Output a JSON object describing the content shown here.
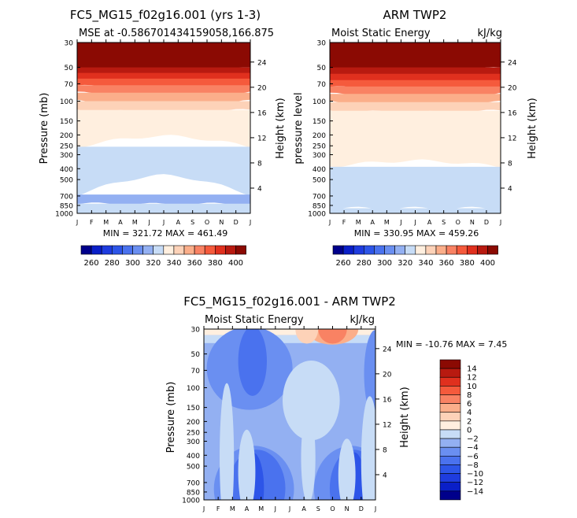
{
  "chart_data": [
    {
      "type": "contour",
      "id": "p1",
      "title": "FC5_MG15_f02g16.001 (yrs 1-3)",
      "subtitle_left": "MSE at -0.586701434159058,166.875",
      "subtitle_right": "",
      "ylabel_left": "Pressure (mb)",
      "ylabel_right": "Height (km)",
      "x_ticks": [
        "J",
        "F",
        "M",
        "A",
        "M",
        "J",
        "J",
        "A",
        "S",
        "O",
        "N",
        "D",
        "J"
      ],
      "pressure_ticks": [
        30,
        50,
        70,
        100,
        150,
        200,
        250,
        300,
        400,
        500,
        700,
        850,
        1000
      ],
      "height_ticks": [
        24,
        20,
        16,
        12,
        8,
        4
      ],
      "stats": "MIN = 321.72  MAX = 461.49",
      "bands": [
        {
          "p_top": 30,
          "p_bot_ends": 50,
          "p_bot_mid": 58,
          "value": 410
        },
        {
          "p_top": 50,
          "p_bot_ends": 56,
          "p_bot_mid": 64,
          "value": 400
        },
        {
          "p_top": 56,
          "p_bot_ends": 63,
          "p_bot_mid": 71,
          "value": 390
        },
        {
          "p_top": 63,
          "p_bot_ends": 72,
          "p_bot_mid": 80,
          "value": 380
        },
        {
          "p_top": 72,
          "p_bot_ends": 84,
          "p_bot_mid": 92,
          "value": 370
        },
        {
          "p_top": 84,
          "p_bot_ends": 100,
          "p_bot_mid": 108,
          "value": 360
        },
        {
          "p_top": 100,
          "p_bot_ends": 120,
          "p_bot_mid": 125,
          "value": 350
        },
        {
          "p_top": 120,
          "p_bot_ends": 255,
          "p_bot_mid": 205,
          "value": 340
        },
        {
          "p_top": 255,
          "p_bot_ends": 680,
          "p_bot_mid": 460,
          "value": 330
        },
        {
          "p_top": 680,
          "p_bot_ends": 820,
          "p_bot_mid": 830,
          "value": 325
        },
        {
          "p_top": 820,
          "p_bot_ends": 1000,
          "p_bot_mid": 1000,
          "value": 330
        }
      ]
    },
    {
      "type": "contour",
      "id": "p2",
      "title": "ARM TWP2",
      "subtitle_left": "Moist Static Energy",
      "subtitle_right": "kJ/kg",
      "ylabel_left": "pressure level",
      "ylabel_right": "Height (km)",
      "x_ticks": [
        "J",
        "F",
        "M",
        "A",
        "M",
        "J",
        "J",
        "A",
        "S",
        "O",
        "N",
        "D",
        "J"
      ],
      "pressure_ticks": [
        30,
        50,
        70,
        100,
        150,
        200,
        250,
        300,
        400,
        500,
        700,
        850,
        1000
      ],
      "height_ticks": [
        24,
        20,
        16,
        12,
        8,
        4
      ],
      "stats": "MIN = 330.95  MAX = 459.26",
      "bands": [
        {
          "p_top": 30,
          "p_bot_ends": 50,
          "p_bot_mid": 56,
          "value": 410
        },
        {
          "p_top": 50,
          "p_bot_ends": 57,
          "p_bot_mid": 63,
          "value": 400
        },
        {
          "p_top": 57,
          "p_bot_ends": 65,
          "p_bot_mid": 72,
          "value": 390
        },
        {
          "p_top": 65,
          "p_bot_ends": 74,
          "p_bot_mid": 82,
          "value": 380
        },
        {
          "p_top": 74,
          "p_bot_ends": 86,
          "p_bot_mid": 94,
          "value": 370
        },
        {
          "p_top": 86,
          "p_bot_ends": 102,
          "p_bot_mid": 110,
          "value": 360
        },
        {
          "p_top": 102,
          "p_bot_ends": 122,
          "p_bot_mid": 126,
          "value": 350
        },
        {
          "p_top": 122,
          "p_bot_ends": 385,
          "p_bot_mid": 340,
          "value": 340
        },
        {
          "p_top": 385,
          "p_bot_ends": 900,
          "p_bot_mid": 900,
          "value": 330
        },
        {
          "p_top": 900,
          "p_bot_ends": 1000,
          "p_bot_mid": 1000,
          "value": 335
        }
      ]
    },
    {
      "type": "contour",
      "id": "p3",
      "title": "FC5_MG15_f02g16.001 - ARM TWP2",
      "subtitle_left": "Moist Static Energy",
      "subtitle_right": "kJ/kg",
      "ylabel_left": "Pressure (mb)",
      "ylabel_right": "Height (km)",
      "x_ticks": [
        "J",
        "F",
        "M",
        "A",
        "M",
        "J",
        "J",
        "A",
        "S",
        "O",
        "N",
        "D",
        "J"
      ],
      "pressure_ticks": [
        30,
        50,
        70,
        100,
        150,
        200,
        250,
        300,
        400,
        500,
        700,
        850,
        1000
      ],
      "height_ticks": [
        24,
        20,
        16,
        12,
        8,
        4
      ],
      "stats": "MIN = -10.76  MAX =   7.45",
      "background_value": -3,
      "features": [
        {
          "kind": "band",
          "p_top": 30,
          "p_bot": 34,
          "value": 1
        },
        {
          "kind": "band",
          "p_top": 34,
          "p_bot": 40,
          "value": -1
        },
        {
          "kind": "blob",
          "month": 9.0,
          "p_c": 30,
          "dm": 1.8,
          "p_h": 35,
          "value": 5
        },
        {
          "kind": "blob",
          "month": 9.0,
          "p_c": 30,
          "dm": 1.0,
          "p_h": 32,
          "value": 7
        },
        {
          "kind": "blob",
          "month": 7.2,
          "p_c": 30,
          "dm": 0.8,
          "p_h": 32,
          "value": 3
        },
        {
          "kind": "blob",
          "month": 3.2,
          "p_c": 67,
          "dm": 3.0,
          "p_h": 90,
          "value": -5
        },
        {
          "kind": "blob",
          "month": 3.4,
          "p_c": 58,
          "dm": 1.0,
          "p_h": 62,
          "value": -7
        },
        {
          "kind": "blob",
          "month": 12.0,
          "p_c": 75,
          "dm": 0.8,
          "p_h": 90,
          "value": -5
        },
        {
          "kind": "blob",
          "month": 7.5,
          "p_c": 130,
          "dm": 2.0,
          "p_h": 145,
          "value": -1
        },
        {
          "kind": "blob",
          "month": 3.5,
          "p_c": 800,
          "dm": 2.8,
          "p_h": 950,
          "value": -5
        },
        {
          "kind": "blob",
          "month": 10.3,
          "p_c": 800,
          "dm": 2.6,
          "p_h": 950,
          "value": -5
        },
        {
          "kind": "blob",
          "month": 3.7,
          "p_c": 790,
          "dm": 2.0,
          "p_h": 860,
          "value": -7
        },
        {
          "kind": "blob",
          "month": 10.5,
          "p_c": 790,
          "dm": 1.7,
          "p_h": 860,
          "value": -7
        },
        {
          "kind": "blob",
          "month": 3.4,
          "p_c": 785,
          "dm": 0.8,
          "p_h": 800,
          "value": -9
        },
        {
          "kind": "blob",
          "month": 10.5,
          "p_c": 785,
          "dm": 0.8,
          "p_h": 800,
          "value": -9
        },
        {
          "kind": "blob",
          "month": 1.6,
          "p_c": 420,
          "dm": 0.5,
          "p_h": 700,
          "value": -1
        },
        {
          "kind": "blob",
          "month": 3.0,
          "p_c": 560,
          "dm": 0.6,
          "p_h": 650,
          "value": -1
        },
        {
          "kind": "blob",
          "month": 7.3,
          "p_c": 420,
          "dm": 0.5,
          "p_h": 520,
          "value": -1
        },
        {
          "kind": "blob",
          "month": 10.0,
          "p_c": 600,
          "dm": 0.6,
          "p_h": 620,
          "value": -1
        },
        {
          "kind": "blob",
          "month": 11.6,
          "p_c": 450,
          "dm": 0.6,
          "p_h": 700,
          "value": -1
        }
      ]
    }
  ],
  "colorbars": {
    "abs": {
      "levels": [
        260,
        270,
        280,
        290,
        300,
        310,
        320,
        330,
        340,
        350,
        360,
        370,
        380,
        390,
        400,
        410
      ],
      "labels": [
        "260",
        "280",
        "300",
        "320",
        "340",
        "360",
        "380",
        "400"
      ],
      "colors": [
        "#00008B",
        "#0A1FC8",
        "#1E3CDF",
        "#2D55E8",
        "#4A72EE",
        "#6A8FF1",
        "#93B0F2",
        "#C7DCF6",
        "#FFEFDF",
        "#FDD2B8",
        "#FBAE8A",
        "#F98263",
        "#F55A3C",
        "#E0301E",
        "#B81A10",
        "#8B0A03"
      ]
    },
    "diff": {
      "levels": [
        -15,
        -13,
        -11,
        -9,
        -7,
        -5,
        -3,
        -1,
        1,
        3,
        5,
        7,
        9,
        11,
        13,
        15
      ],
      "labels": [
        "14",
        "12",
        "10",
        "8",
        "6",
        "4",
        "2",
        "0",
        "−2",
        "−4",
        "−6",
        "−8",
        "−10",
        "−12",
        "−14"
      ],
      "colors": [
        "#00008B",
        "#0A1FC8",
        "#1E3CDF",
        "#2D55E8",
        "#4A72EE",
        "#6A8FF1",
        "#93B0F2",
        "#C7DCF6",
        "#FFEFDF",
        "#FDD2B8",
        "#FBAE8A",
        "#F98263",
        "#F55A3C",
        "#E0301E",
        "#B81A10",
        "#8B0A03"
      ]
    }
  }
}
